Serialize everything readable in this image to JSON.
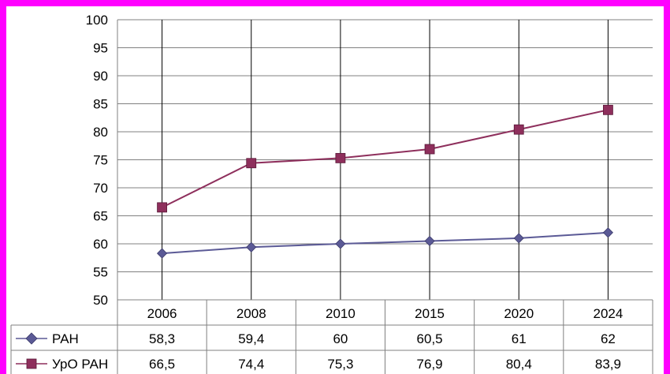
{
  "chart_data": {
    "type": "line",
    "categories": [
      "2006",
      "2008",
      "2010",
      "2015",
      "2020",
      "2024"
    ],
    "series": [
      {
        "name": "РАН",
        "values": [
          58.3,
          59.4,
          60,
          60.5,
          61,
          62
        ],
        "labels": [
          "58,3",
          "59,4",
          "60",
          "60,5",
          "61",
          "62"
        ],
        "color": "#5b5a96",
        "marker": "diamond"
      },
      {
        "name": "УрО РАН",
        "values": [
          66.5,
          74.4,
          75.3,
          76.9,
          80.4,
          83.9
        ],
        "labels": [
          "66,5",
          "74,4",
          "75,3",
          "76,9",
          "80,4",
          "83,9"
        ],
        "color": "#8e2f5c",
        "marker": "square"
      }
    ],
    "ylim": [
      50,
      100
    ],
    "yticks": [
      "50",
      "55",
      "60",
      "65",
      "70",
      "75",
      "80",
      "85",
      "90",
      "95",
      "100"
    ],
    "grid": true,
    "legend": "data-table",
    "title": "",
    "xlabel": "",
    "ylabel": ""
  },
  "colors": {
    "border": "#ff00ff",
    "background": "#ffffff",
    "grid": "#808080"
  }
}
